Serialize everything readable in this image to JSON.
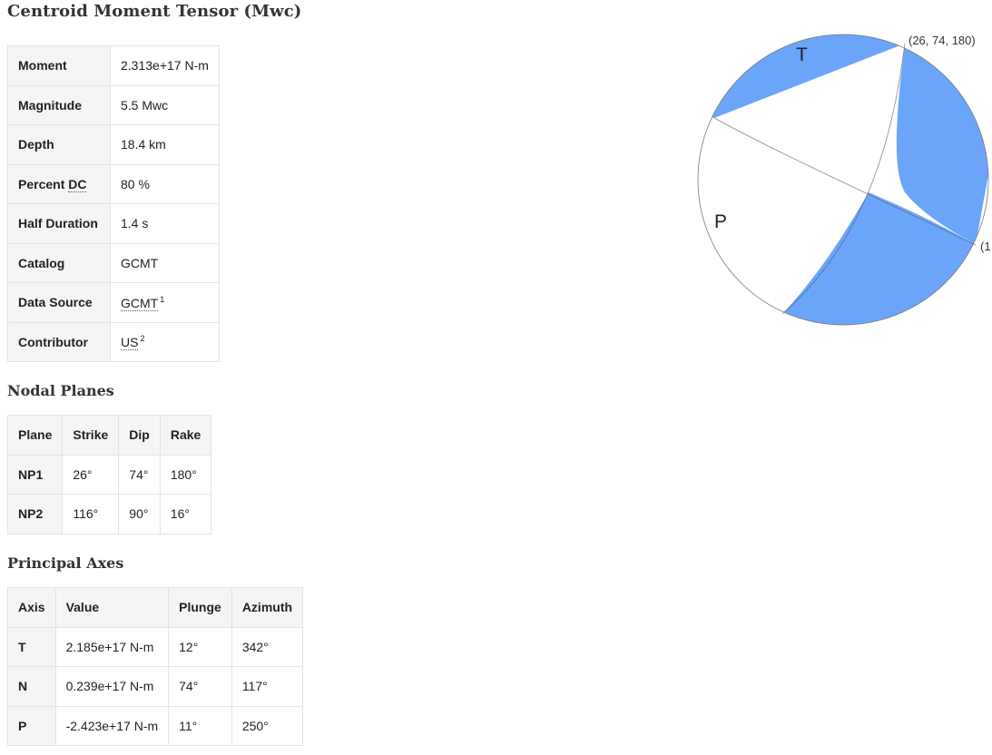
{
  "title": "Centroid Moment Tensor (Mwc)",
  "summary": {
    "moment_label": "Moment",
    "moment_value": "2.313e+17 N-m",
    "magnitude_label": "Magnitude",
    "magnitude_value": "5.5 Mwc",
    "depth_label": "Depth",
    "depth_value": "18.4 km",
    "percent_label": "Percent",
    "percent_abbr": "DC",
    "percent_value": "80 %",
    "half_duration_label": "Half Duration",
    "half_duration_value": "1.4 s",
    "catalog_label": "Catalog",
    "catalog_value": "GCMT",
    "data_source_label": "Data Source",
    "data_source_value": "GCMT",
    "data_source_ref": "1",
    "contributor_label": "Contributor",
    "contributor_value": "US",
    "contributor_ref": "2"
  },
  "nodal_planes": {
    "heading": "Nodal Planes",
    "headers": [
      "Plane",
      "Strike",
      "Dip",
      "Rake"
    ],
    "rows": [
      [
        "NP1",
        "26°",
        "74°",
        "180°"
      ],
      [
        "NP2",
        "116°",
        "90°",
        "16°"
      ]
    ]
  },
  "principal_axes": {
    "heading": "Principal Axes",
    "headers": [
      "Axis",
      "Value",
      "Plunge",
      "Azimuth"
    ],
    "rows": [
      [
        "T",
        "2.185e+17 N-m",
        "12°",
        "342°"
      ],
      [
        "N",
        "0.239e+17 N-m",
        "74°",
        "117°"
      ],
      [
        "P",
        "-2.423e+17 N-m",
        "11°",
        "250°"
      ]
    ]
  },
  "beachball": {
    "t_label": "T",
    "p_label": "P",
    "np1_label": "(26, 74, 180)",
    "np2_label_partial": "(1",
    "fill_color": "#6aa5fa",
    "outline_color": "#777777"
  }
}
